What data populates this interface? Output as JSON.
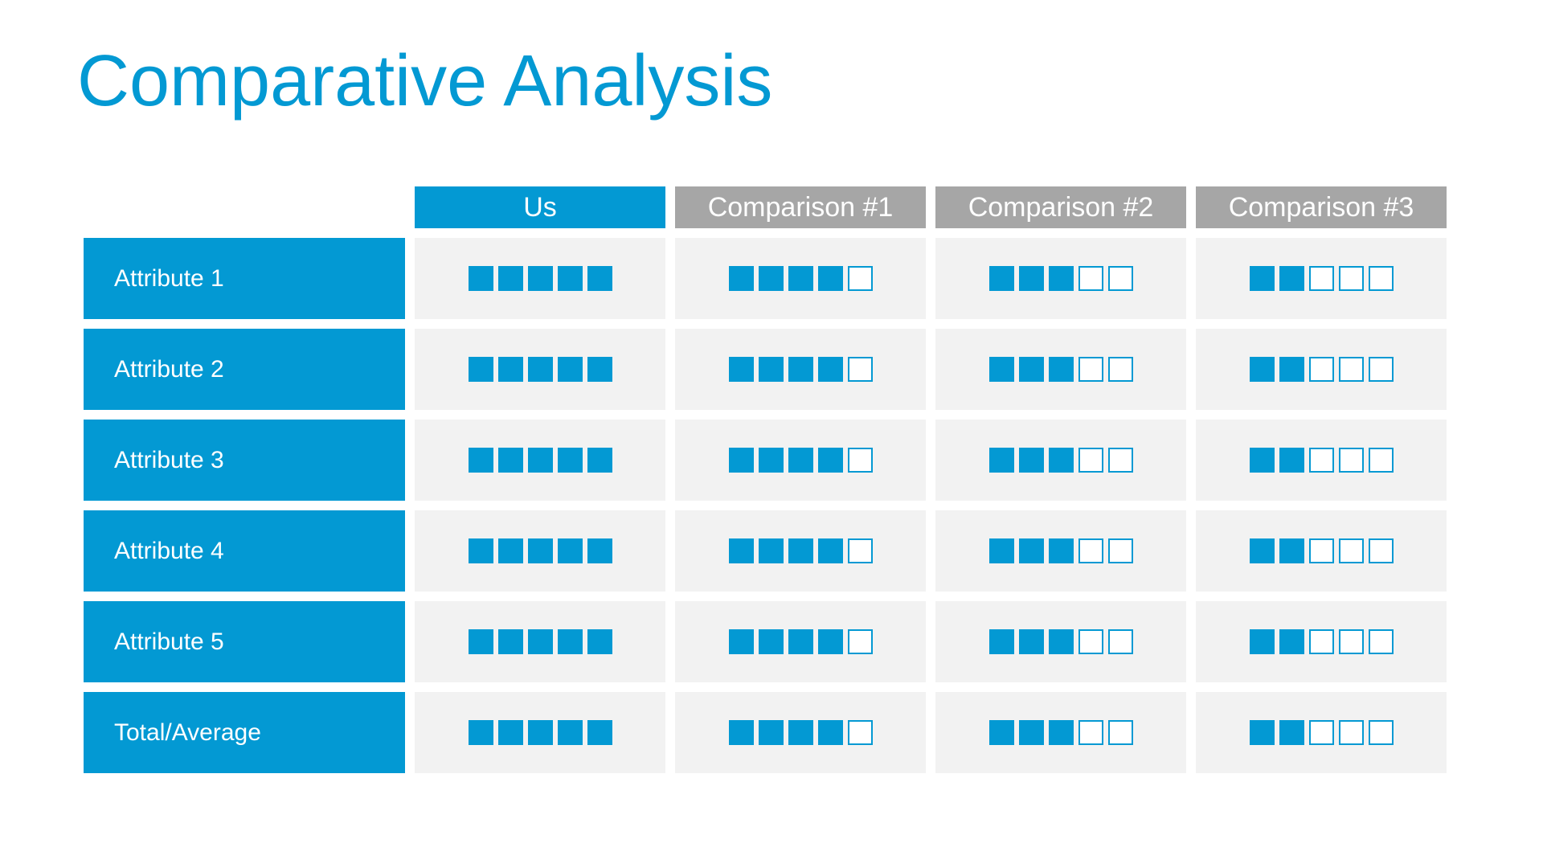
{
  "title": "Comparative Analysis",
  "accent_color": "#0399d3",
  "secondary_header_color": "#a6a6a6",
  "max_rating": 5,
  "columns": [
    {
      "label": "Us",
      "style": "primary"
    },
    {
      "label": "Comparison #1",
      "style": "secondary"
    },
    {
      "label": "Comparison #2",
      "style": "secondary"
    },
    {
      "label": "Comparison #3",
      "style": "secondary"
    }
  ],
  "rows": [
    {
      "label": "Attribute 1",
      "ratings": [
        5,
        4,
        3,
        2
      ]
    },
    {
      "label": "Attribute 2",
      "ratings": [
        5,
        4,
        3,
        2
      ]
    },
    {
      "label": "Attribute 3",
      "ratings": [
        5,
        4,
        3,
        2
      ]
    },
    {
      "label": "Attribute 4",
      "ratings": [
        5,
        4,
        3,
        2
      ]
    },
    {
      "label": "Attribute 5",
      "ratings": [
        5,
        4,
        3,
        2
      ]
    },
    {
      "label": "Total/Average",
      "ratings": [
        5,
        4,
        3,
        2
      ]
    }
  ]
}
